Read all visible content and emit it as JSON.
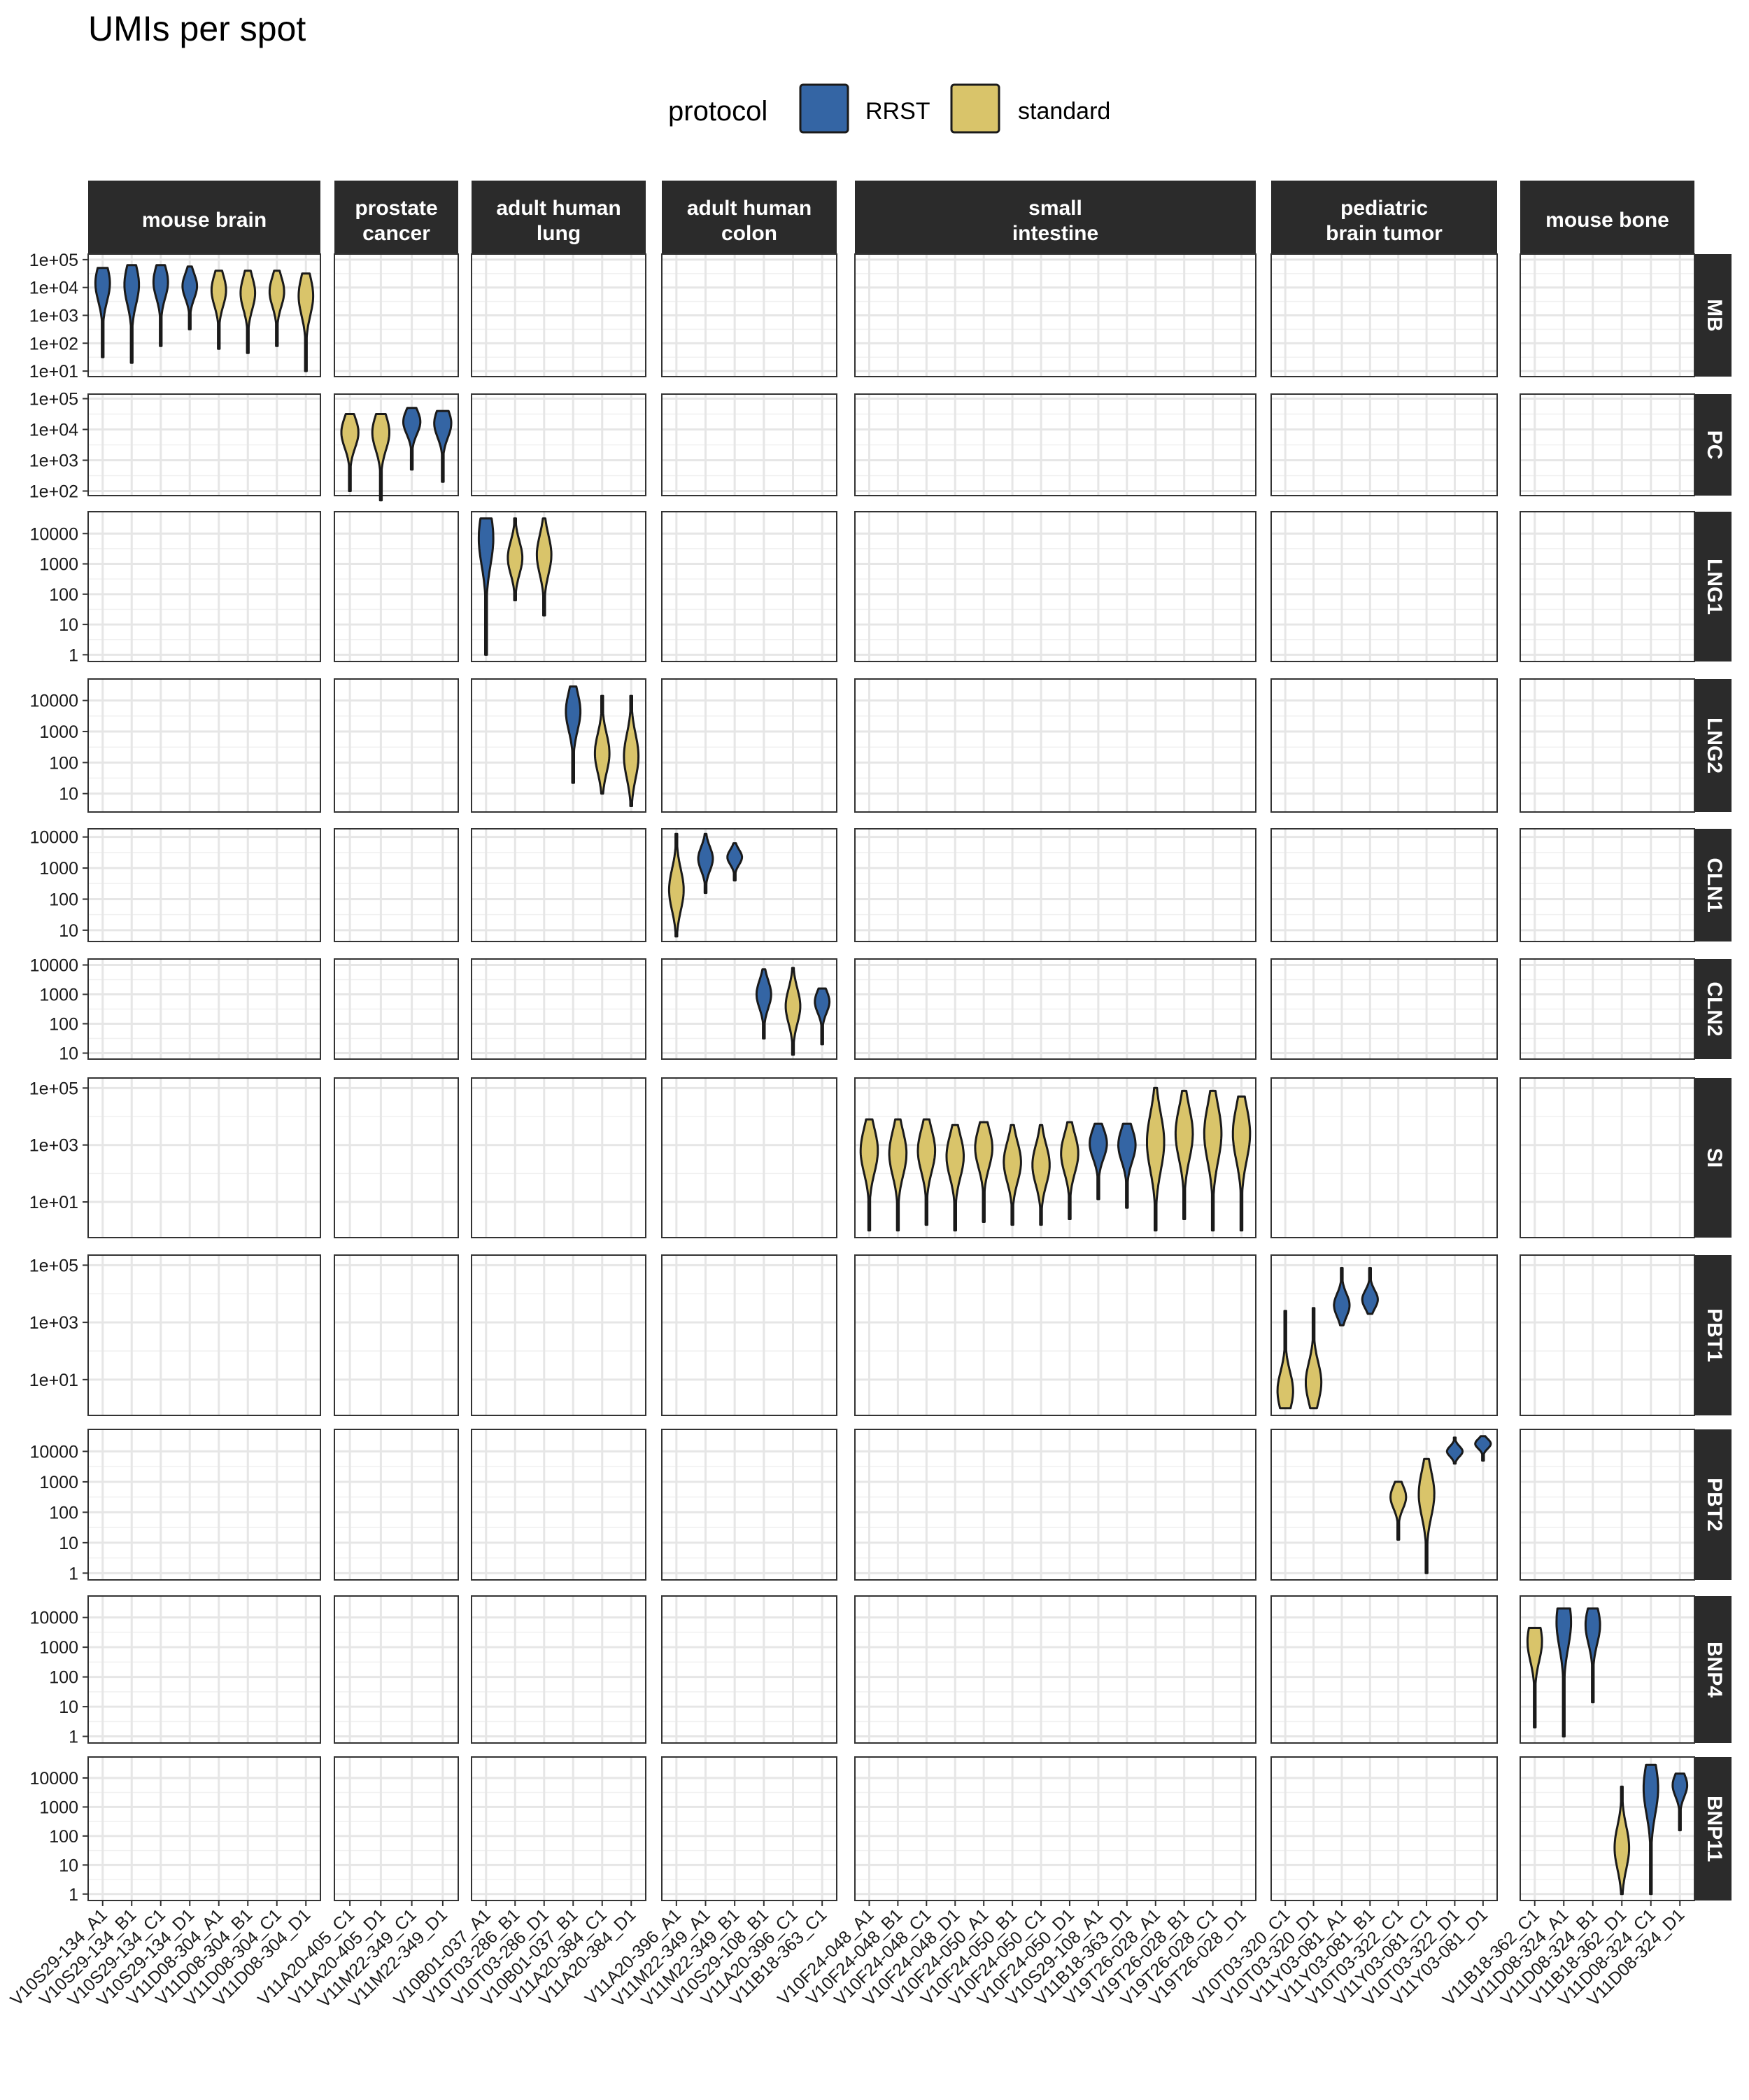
{
  "chart_data": {
    "type": "violin",
    "title": "UMIs per spot",
    "legend": {
      "title": "protocol",
      "position": "top",
      "entries": [
        {
          "name": "RRST",
          "color": "#3465A4"
        },
        {
          "name": "standard",
          "color": "#D9C46A"
        }
      ]
    },
    "colors": {
      "RRST": "#3465A4",
      "standard": "#D9C46A",
      "strip_bg": "#2B2B2B",
      "grid": "#E6E6E6",
      "outline": "#1a1a1a"
    },
    "grid": true,
    "columns": [
      {
        "label": [
          "mouse brain"
        ],
        "samples": [
          "V10S29-134_A1",
          "V10S29-134_B1",
          "V10S29-134_C1",
          "V10S29-134_D1",
          "V11D08-304_A1",
          "V11D08-304_B1",
          "V11D08-304_C1",
          "V11D08-304_D1"
        ]
      },
      {
        "label": [
          "prostate",
          "cancer"
        ],
        "samples": [
          "V11A20-405_C1",
          "V11A20-405_D1",
          "V11M22-349_C1",
          "V11M22-349_D1"
        ]
      },
      {
        "label": [
          "adult human",
          "lung"
        ],
        "samples": [
          "V10B01-037_A1",
          "V10T03-286_B1",
          "V10T03-286_D1",
          "V10B01-037_B1",
          "V11A20-384_C1",
          "V11A20-384_D1"
        ]
      },
      {
        "label": [
          "adult human",
          "colon"
        ],
        "samples": [
          "V11A20-396_A1",
          "V11M22-349_A1",
          "V11M22-349_B1",
          "V10S29-108_B1",
          "V11A20-396_C1",
          "V11B18-363_C1"
        ]
      },
      {
        "label": [
          "small",
          "intestine"
        ],
        "samples": [
          "V10F24-048_A1",
          "V10F24-048_B1",
          "V10F24-048_C1",
          "V10F24-048_D1",
          "V10F24-050_A1",
          "V10F24-050_B1",
          "V10F24-050_C1",
          "V10F24-050_D1",
          "V10S29-108_A1",
          "V11B18-363_D1",
          "V19T26-028_A1",
          "V19T26-028_B1",
          "V19T26-028_C1",
          "V19T26-028_D1"
        ]
      },
      {
        "label": [
          "pediatric",
          "brain tumor"
        ],
        "samples": [
          "V10T03-320_C1",
          "V10T03-320_D1",
          "V11Y03-081_A1",
          "V11Y03-081_B1",
          "V10T03-322_C1",
          "V11Y03-081_C1",
          "V10T03-322_D1",
          "V11Y03-081_D1"
        ]
      },
      {
        "label": [
          "mouse bone"
        ],
        "samples": [
          "V11B18-362_C1",
          "V11D08-324_A1",
          "V11D08-324_B1",
          "V11B18-362_D1",
          "V11D08-324_C1",
          "V11D08-324_D1"
        ]
      }
    ],
    "rows": [
      {
        "label": "MB",
        "log_min": 1,
        "log_max": 5,
        "ticks": [
          1,
          2,
          3,
          4,
          5
        ],
        "tick_labels": [
          "1e+01",
          "1e+02",
          "1e+03",
          "1e+04",
          "1e+05"
        ],
        "violins": [
          {
            "col": 0,
            "sample": 0,
            "protocol": "RRST",
            "min": 1.5,
            "max": 4.7,
            "mode": 4.15,
            "width": 0.5
          },
          {
            "col": 0,
            "sample": 1,
            "protocol": "RRST",
            "min": 1.3,
            "max": 4.8,
            "mode": 4.1,
            "width": 0.5
          },
          {
            "col": 0,
            "sample": 2,
            "protocol": "RRST",
            "min": 1.9,
            "max": 4.8,
            "mode": 4.2,
            "width": 0.5
          },
          {
            "col": 0,
            "sample": 3,
            "protocol": "RRST",
            "min": 2.5,
            "max": 4.75,
            "mode": 4.05,
            "width": 0.5
          },
          {
            "col": 0,
            "sample": 4,
            "protocol": "standard",
            "min": 1.8,
            "max": 4.6,
            "mode": 3.9,
            "width": 0.5
          },
          {
            "col": 0,
            "sample": 5,
            "protocol": "standard",
            "min": 1.65,
            "max": 4.6,
            "mode": 3.8,
            "width": 0.5
          },
          {
            "col": 0,
            "sample": 6,
            "protocol": "standard",
            "min": 1.9,
            "max": 4.6,
            "mode": 3.85,
            "width": 0.5
          },
          {
            "col": 0,
            "sample": 7,
            "protocol": "standard",
            "min": 1.0,
            "max": 4.5,
            "mode": 3.7,
            "width": 0.5
          }
        ]
      },
      {
        "label": "PC",
        "log_min": 2,
        "log_max": 5,
        "ticks": [
          2,
          3,
          4,
          5
        ],
        "tick_labels": [
          "1e+02",
          "1e+03",
          "1e+04",
          "1e+05"
        ],
        "violins": [
          {
            "col": 1,
            "sample": 0,
            "protocol": "standard",
            "min": 2.0,
            "max": 4.5,
            "mode": 3.9,
            "width": 0.55
          },
          {
            "col": 1,
            "sample": 1,
            "protocol": "standard",
            "min": 1.7,
            "max": 4.5,
            "mode": 3.9,
            "width": 0.55
          },
          {
            "col": 1,
            "sample": 2,
            "protocol": "RRST",
            "min": 2.7,
            "max": 4.7,
            "mode": 4.25,
            "width": 0.55
          },
          {
            "col": 1,
            "sample": 3,
            "protocol": "RRST",
            "min": 2.3,
            "max": 4.6,
            "mode": 4.2,
            "width": 0.55
          }
        ]
      },
      {
        "label": "LNG1",
        "log_min": 0,
        "log_max": 4.5,
        "ticks": [
          0,
          1,
          2,
          3,
          4
        ],
        "tick_labels": [
          "1",
          "10",
          "100",
          "1000",
          "10000"
        ],
        "violins": [
          {
            "col": 2,
            "sample": 0,
            "protocol": "RRST",
            "min": 0.0,
            "max": 4.5,
            "mode": 3.85,
            "width": 0.5
          },
          {
            "col": 2,
            "sample": 1,
            "protocol": "standard",
            "min": 1.8,
            "max": 4.5,
            "mode": 3.2,
            "width": 0.5
          },
          {
            "col": 2,
            "sample": 2,
            "protocol": "standard",
            "min": 1.3,
            "max": 4.5,
            "mode": 3.3,
            "width": 0.5
          }
        ]
      },
      {
        "label": "LNG2",
        "log_min": 0.6,
        "log_max": 4.5,
        "ticks": [
          1,
          2,
          3,
          4
        ],
        "tick_labels": [
          "10",
          "100",
          "1000",
          "10000"
        ],
        "violins": [
          {
            "col": 2,
            "sample": 3,
            "protocol": "RRST",
            "min": 1.35,
            "max": 4.45,
            "mode": 3.65,
            "width": 0.5
          },
          {
            "col": 2,
            "sample": 4,
            "protocol": "standard",
            "min": 1.0,
            "max": 4.15,
            "mode": 2.3,
            "width": 0.5
          },
          {
            "col": 2,
            "sample": 5,
            "protocol": "standard",
            "min": 0.6,
            "max": 4.15,
            "mode": 2.2,
            "width": 0.5
          }
        ]
      },
      {
        "label": "CLN1",
        "log_min": 0.8,
        "log_max": 4.1,
        "ticks": [
          1,
          2,
          3,
          4
        ],
        "tick_labels": [
          "10",
          "100",
          "1000",
          "10000"
        ],
        "violins": [
          {
            "col": 3,
            "sample": 0,
            "protocol": "standard",
            "min": 0.8,
            "max": 4.1,
            "mode": 2.3,
            "width": 0.5
          },
          {
            "col": 3,
            "sample": 1,
            "protocol": "RRST",
            "min": 2.2,
            "max": 4.1,
            "mode": 3.3,
            "width": 0.5
          },
          {
            "col": 3,
            "sample": 2,
            "protocol": "RRST",
            "min": 2.6,
            "max": 3.8,
            "mode": 3.35,
            "width": 0.5
          }
        ]
      },
      {
        "label": "CLN2",
        "log_min": 0.95,
        "log_max": 4.05,
        "ticks": [
          1,
          2,
          3,
          4
        ],
        "tick_labels": [
          "10",
          "100",
          "1000",
          "10000"
        ],
        "violins": [
          {
            "col": 3,
            "sample": 3,
            "protocol": "RRST",
            "min": 1.5,
            "max": 3.85,
            "mode": 3.0,
            "width": 0.5
          },
          {
            "col": 3,
            "sample": 4,
            "protocol": "standard",
            "min": 0.95,
            "max": 3.9,
            "mode": 2.6,
            "width": 0.5
          },
          {
            "col": 3,
            "sample": 5,
            "protocol": "RRST",
            "min": 1.3,
            "max": 3.2,
            "mode": 2.75,
            "width": 0.5
          }
        ]
      },
      {
        "label": "SI",
        "log_min": 0,
        "log_max": 5.1,
        "ticks": [
          1,
          3,
          5
        ],
        "tick_labels": [
          "1e+01",
          "1e+03",
          "1e+05"
        ],
        "violins": [
          {
            "col": 4,
            "sample": 0,
            "protocol": "standard",
            "min": 0.0,
            "max": 3.9,
            "mode": 2.8,
            "width": 0.6
          },
          {
            "col": 4,
            "sample": 1,
            "protocol": "standard",
            "min": 0.0,
            "max": 3.9,
            "mode": 2.7,
            "width": 0.6
          },
          {
            "col": 4,
            "sample": 2,
            "protocol": "standard",
            "min": 0.2,
            "max": 3.9,
            "mode": 2.8,
            "width": 0.6
          },
          {
            "col": 4,
            "sample": 3,
            "protocol": "standard",
            "min": 0.0,
            "max": 3.7,
            "mode": 2.6,
            "width": 0.6
          },
          {
            "col": 4,
            "sample": 4,
            "protocol": "standard",
            "min": 0.3,
            "max": 3.8,
            "mode": 2.9,
            "width": 0.6
          },
          {
            "col": 4,
            "sample": 5,
            "protocol": "standard",
            "min": 0.2,
            "max": 3.7,
            "mode": 2.4,
            "width": 0.6
          },
          {
            "col": 4,
            "sample": 6,
            "protocol": "standard",
            "min": 0.2,
            "max": 3.7,
            "mode": 2.3,
            "width": 0.6
          },
          {
            "col": 4,
            "sample": 7,
            "protocol": "standard",
            "min": 0.4,
            "max": 3.8,
            "mode": 2.7,
            "width": 0.6
          },
          {
            "col": 4,
            "sample": 8,
            "protocol": "RRST",
            "min": 1.1,
            "max": 3.75,
            "mode": 3.05,
            "width": 0.6
          },
          {
            "col": 4,
            "sample": 9,
            "protocol": "RRST",
            "min": 0.8,
            "max": 3.75,
            "mode": 3.0,
            "width": 0.6
          },
          {
            "col": 4,
            "sample": 10,
            "protocol": "standard",
            "min": 0.0,
            "max": 5.0,
            "mode": 3.1,
            "width": 0.6
          },
          {
            "col": 4,
            "sample": 11,
            "protocol": "standard",
            "min": 0.4,
            "max": 4.9,
            "mode": 3.4,
            "width": 0.6
          },
          {
            "col": 4,
            "sample": 12,
            "protocol": "standard",
            "min": 0.0,
            "max": 4.9,
            "mode": 3.4,
            "width": 0.6
          },
          {
            "col": 4,
            "sample": 13,
            "protocol": "standard",
            "min": 0.0,
            "max": 4.7,
            "mode": 3.4,
            "width": 0.6
          }
        ]
      },
      {
        "label": "PBT1",
        "log_min": 0,
        "log_max": 5.1,
        "ticks": [
          1,
          3,
          5
        ],
        "tick_labels": [
          "1e+01",
          "1e+03",
          "1e+05"
        ],
        "violins": [
          {
            "col": 5,
            "sample": 0,
            "protocol": "standard",
            "min": 0.0,
            "max": 3.4,
            "mode": 0.6,
            "width": 0.55
          },
          {
            "col": 5,
            "sample": 1,
            "protocol": "standard",
            "min": 0.0,
            "max": 3.5,
            "mode": 0.9,
            "width": 0.55
          },
          {
            "col": 5,
            "sample": 2,
            "protocol": "RRST",
            "min": 2.9,
            "max": 4.9,
            "mode": 3.6,
            "width": 0.55
          },
          {
            "col": 5,
            "sample": 3,
            "protocol": "RRST",
            "min": 3.3,
            "max": 4.9,
            "mode": 3.8,
            "width": 0.55
          }
        ]
      },
      {
        "label": "PBT2",
        "log_min": 0,
        "log_max": 4.5,
        "ticks": [
          0,
          1,
          2,
          3,
          4
        ],
        "tick_labels": [
          "1",
          "10",
          "100",
          "1000",
          "10000"
        ],
        "violins": [
          {
            "col": 5,
            "sample": 4,
            "protocol": "standard",
            "min": 1.1,
            "max": 3.0,
            "mode": 2.5,
            "width": 0.55
          },
          {
            "col": 5,
            "sample": 5,
            "protocol": "standard",
            "min": 0.0,
            "max": 3.75,
            "mode": 2.6,
            "width": 0.55
          },
          {
            "col": 5,
            "sample": 6,
            "protocol": "RRST",
            "min": 3.6,
            "max": 4.45,
            "mode": 4.0,
            "width": 0.55
          },
          {
            "col": 5,
            "sample": 7,
            "protocol": "RRST",
            "min": 3.7,
            "max": 4.5,
            "mode": 4.25,
            "width": 0.55
          }
        ]
      },
      {
        "label": "BNP4",
        "log_min": 0,
        "log_max": 4.5,
        "ticks": [
          0,
          1,
          2,
          3,
          4
        ],
        "tick_labels": [
          "1",
          "10",
          "100",
          "1000",
          "10000"
        ],
        "violins": [
          {
            "col": 6,
            "sample": 0,
            "protocol": "standard",
            "min": 0.3,
            "max": 3.65,
            "mode": 3.2,
            "width": 0.5
          },
          {
            "col": 6,
            "sample": 1,
            "protocol": "RRST",
            "min": 0.0,
            "max": 4.3,
            "mode": 3.85,
            "width": 0.5
          },
          {
            "col": 6,
            "sample": 2,
            "protocol": "RRST",
            "min": 1.15,
            "max": 4.3,
            "mode": 3.75,
            "width": 0.5
          }
        ]
      },
      {
        "label": "BNP11",
        "log_min": 0,
        "log_max": 4.5,
        "ticks": [
          0,
          1,
          2,
          3,
          4
        ],
        "tick_labels": [
          "1",
          "10",
          "100",
          "1000",
          "10000"
        ],
        "violins": [
          {
            "col": 6,
            "sample": 3,
            "protocol": "standard",
            "min": 0.0,
            "max": 3.7,
            "mode": 1.6,
            "width": 0.5
          },
          {
            "col": 6,
            "sample": 4,
            "protocol": "RRST",
            "min": 0.0,
            "max": 4.45,
            "mode": 3.65,
            "width": 0.5
          },
          {
            "col": 6,
            "sample": 5,
            "protocol": "RRST",
            "min": 2.2,
            "max": 4.15,
            "mode": 3.75,
            "width": 0.5
          }
        ]
      }
    ]
  }
}
